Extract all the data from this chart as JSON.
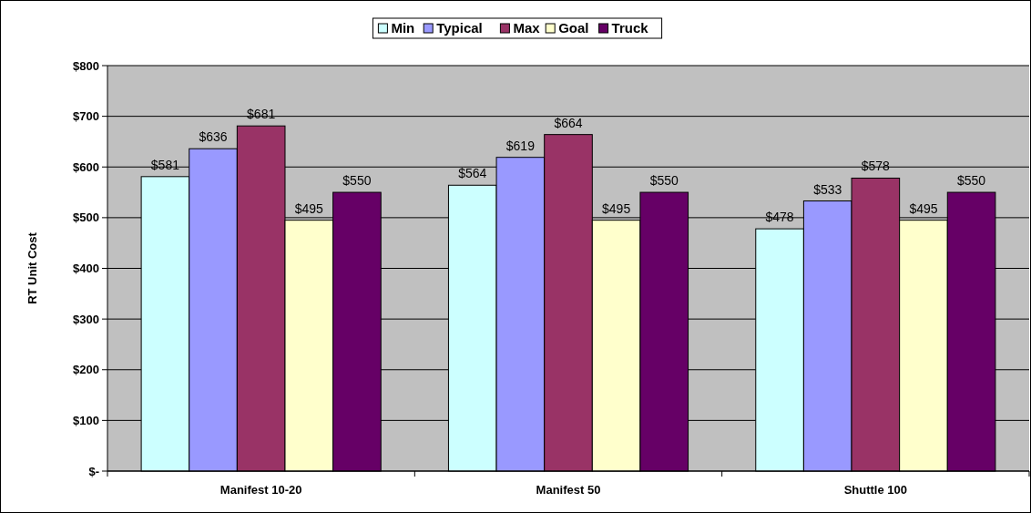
{
  "chart_data": {
    "type": "bar",
    "ylabel": "RT Unit Cost",
    "categories": [
      "Manifest 10-20",
      "Manifest 50",
      "Shuttle 100"
    ],
    "series": [
      {
        "name": "Min",
        "color": "#ccffff",
        "values": [
          581,
          564,
          478
        ],
        "value_labels": [
          "$581",
          "$564",
          "$478"
        ]
      },
      {
        "name": "Typical",
        "color": "#9999ff",
        "values": [
          636,
          619,
          533
        ],
        "value_labels": [
          "$636",
          "$619",
          "$533"
        ]
      },
      {
        "name": "Max",
        "color": "#993366",
        "values": [
          681,
          664,
          578
        ],
        "value_labels": [
          "$681",
          "$664",
          "$578"
        ]
      },
      {
        "name": "Goal",
        "color": "#ffffcc",
        "values": [
          495,
          495,
          495
        ],
        "value_labels": [
          "$495",
          "$495",
          "$495"
        ]
      },
      {
        "name": "Truck",
        "color": "#660066",
        "values": [
          550,
          550,
          550
        ],
        "value_labels": [
          "$550",
          "$550",
          "$550"
        ]
      }
    ],
    "ylim": [
      0,
      800
    ],
    "yticks": [
      {
        "value": 0,
        "label": "$-"
      },
      {
        "value": 100,
        "label": "$100"
      },
      {
        "value": 200,
        "label": "$200"
      },
      {
        "value": 300,
        "label": "$300"
      },
      {
        "value": 400,
        "label": "$400"
      },
      {
        "value": 500,
        "label": "$500"
      },
      {
        "value": 600,
        "label": "$600"
      },
      {
        "value": 700,
        "label": "$700"
      },
      {
        "value": 800,
        "label": "$800"
      }
    ],
    "grid": "y",
    "legend": "top"
  }
}
